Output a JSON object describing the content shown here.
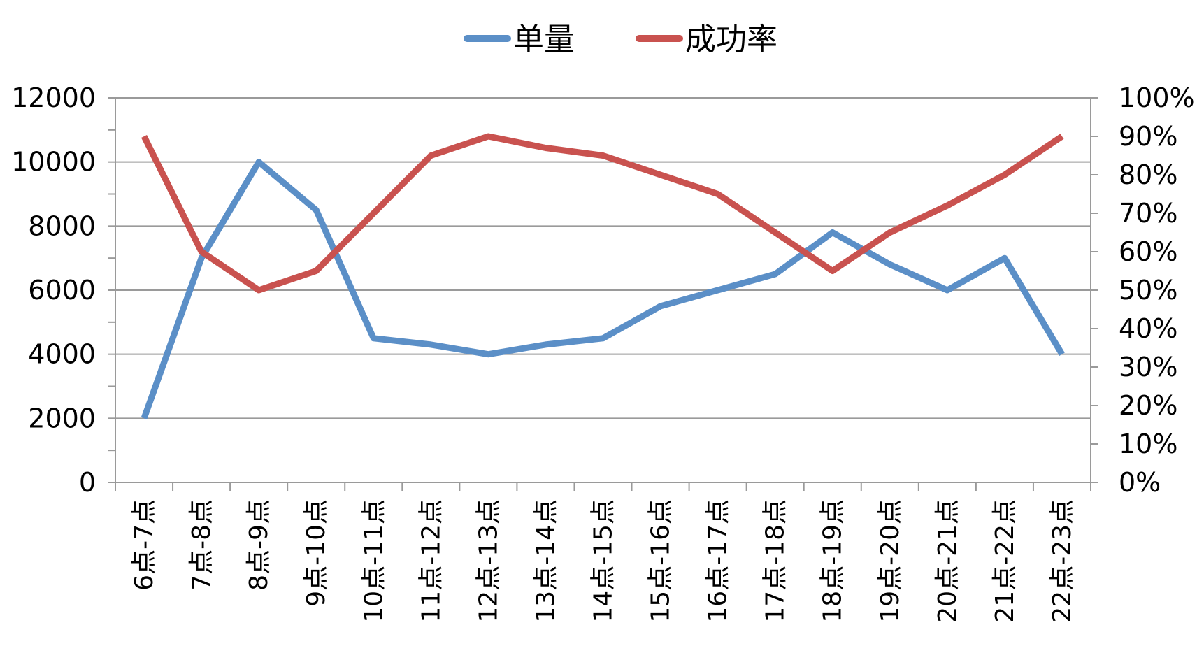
{
  "chart_data": {
    "type": "line",
    "categories": [
      "6点-7点",
      "7点-8点",
      "8点-9点",
      "9点-10点",
      "10点-11点",
      "11点-12点",
      "12点-13点",
      "13点-14点",
      "14点-15点",
      "15点-16点",
      "16点-17点",
      "17点-18点",
      "18点-19点",
      "19点-20点",
      "20点-21点",
      "21点-22点",
      "22点-23点"
    ],
    "series": [
      {
        "name": "单量",
        "axis": "left",
        "color": "#5B8FC7",
        "values": [
          2000,
          7000,
          10000,
          8500,
          4500,
          4300,
          4000,
          4300,
          4500,
          5500,
          6000,
          6500,
          7800,
          6800,
          6000,
          7000,
          4000
        ]
      },
      {
        "name": "成功率",
        "axis": "right",
        "color": "#C9524F",
        "values": [
          0.9,
          0.6,
          0.5,
          0.55,
          0.7,
          0.85,
          0.9,
          0.87,
          0.85,
          0.8,
          0.75,
          0.65,
          0.55,
          0.65,
          0.72,
          0.8,
          0.9
        ]
      }
    ],
    "y_left": {
      "min": 0,
      "max": 12000,
      "ticks": [
        0,
        2000,
        4000,
        6000,
        8000,
        10000,
        12000
      ]
    },
    "y_right": {
      "min": 0,
      "max": 1,
      "ticks": [
        "0%",
        "10%",
        "20%",
        "30%",
        "40%",
        "50%",
        "60%",
        "70%",
        "80%",
        "90%",
        "100%"
      ]
    },
    "legend_position": "top",
    "grid": true
  }
}
